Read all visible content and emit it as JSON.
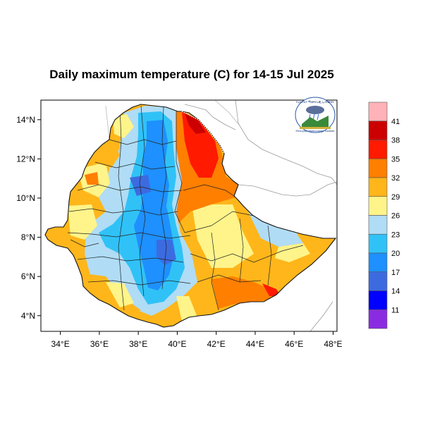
{
  "title": "Daily maximum temperature (C) for 14-15 Jul 2025",
  "map": {
    "x_ticks": [
      "34°E",
      "36°E",
      "38°E",
      "40°E",
      "42°E",
      "44°E",
      "46°E",
      "48°E"
    ],
    "y_ticks": [
      "14°N",
      "12°N",
      "10°N",
      "8°N",
      "6°N",
      "4°N"
    ],
    "lon_range": [
      33,
      48.2
    ],
    "lat_range": [
      3.2,
      15
    ]
  },
  "colorbar": {
    "labels": [
      "41",
      "38",
      "35",
      "32",
      "29",
      "26",
      "23",
      "20",
      "17",
      "14",
      "11"
    ],
    "colors": [
      "#ffb3b8",
      "#cc0000",
      "#ff1a00",
      "#ff7f00",
      "#ffb61a",
      "#fff48a",
      "#b0dcf5",
      "#30c2f7",
      "#1e90ff",
      "#3c6be0",
      "#0000ff",
      "#8a2be2"
    ]
  },
  "logo": {
    "text_top": "የኢትዮጵያ ሚቲዎሮሎጂ ኢንስቲትዩት",
    "text_bottom": "Ethiopian Meteorology Institute"
  },
  "palette": {
    "hot_red": "#ff1a00",
    "dark_red": "#cc0000",
    "orange": "#ff7f00",
    "light_orange": "#ffb61a",
    "yellow": "#fff48a",
    "light_blue": "#b0dcf5",
    "cyan": "#30c2f7",
    "blue": "#1e90ff",
    "royal": "#3c6be0"
  }
}
